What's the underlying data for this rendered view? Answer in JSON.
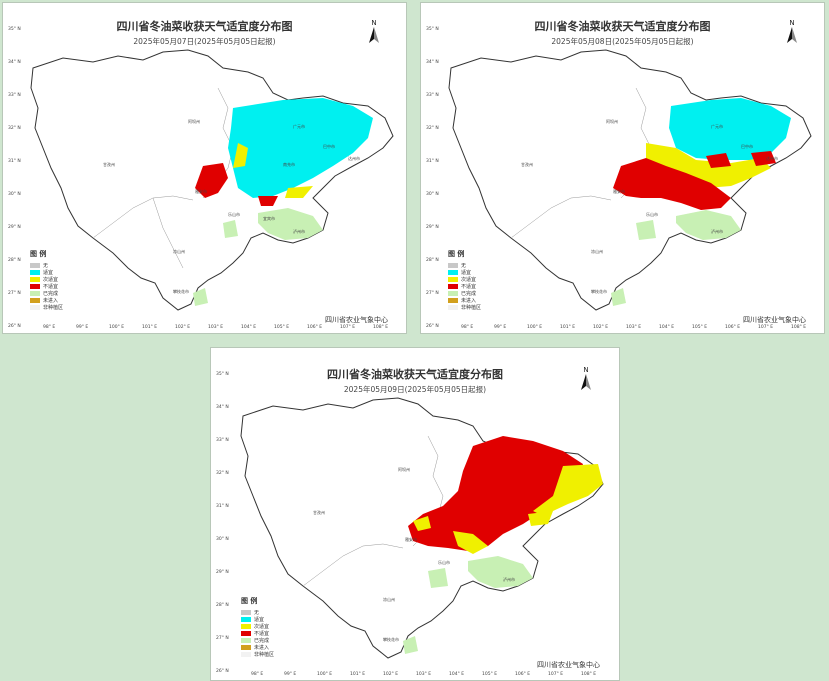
{
  "maps": [
    {
      "title": "四川省冬油菜收获天气适宜度分布图",
      "subtitle": "2025年05月07日(2025年05月05日起报)",
      "footer": "四川省农业气象中心"
    },
    {
      "title": "四川省冬油菜收获天气适宜度分布图",
      "subtitle": "2025年05月08日(2025年05月05日起报)",
      "footer": "四川省农业气象中心"
    },
    {
      "title": "四川省冬油菜收获天气适宜度分布图",
      "subtitle": "2025年05月09日(2025年05月05日起报)",
      "footer": "四川省农业气象中心"
    }
  ],
  "north_label": "N",
  "legend": {
    "title": "图 例",
    "items": [
      {
        "label": "无",
        "color": "#c8c8c8"
      },
      {
        "label": "适宜",
        "color": "#00f0f0"
      },
      {
        "label": "次适宜",
        "color": "#f0f000"
      },
      {
        "label": "不适宜",
        "color": "#e00000"
      },
      {
        "label": "已完成",
        "color": "#c8f0b4"
      },
      {
        "label": "未进入",
        "color": "#d2a01e"
      },
      {
        "label": "非种植区",
        "color": "#f2f2f2"
      }
    ]
  },
  "latitudes": [
    "35° N",
    "34° N",
    "33° N",
    "32° N",
    "31° N",
    "30° N",
    "29° N",
    "28° N",
    "27° N",
    "26° N"
  ],
  "longitudes": [
    "98° E",
    "99° E",
    "100° E",
    "101° E",
    "102° E",
    "103° E",
    "104° E",
    "105° E",
    "106° E",
    "107° E",
    "108° E"
  ],
  "cities": [
    "阿坝州",
    "甘孜州",
    "广元市",
    "巴中市",
    "达州市",
    "南充市",
    "雅安市",
    "乐山市",
    "宜宾市",
    "泸州市",
    "凉山州",
    "攀枝花市"
  ]
}
